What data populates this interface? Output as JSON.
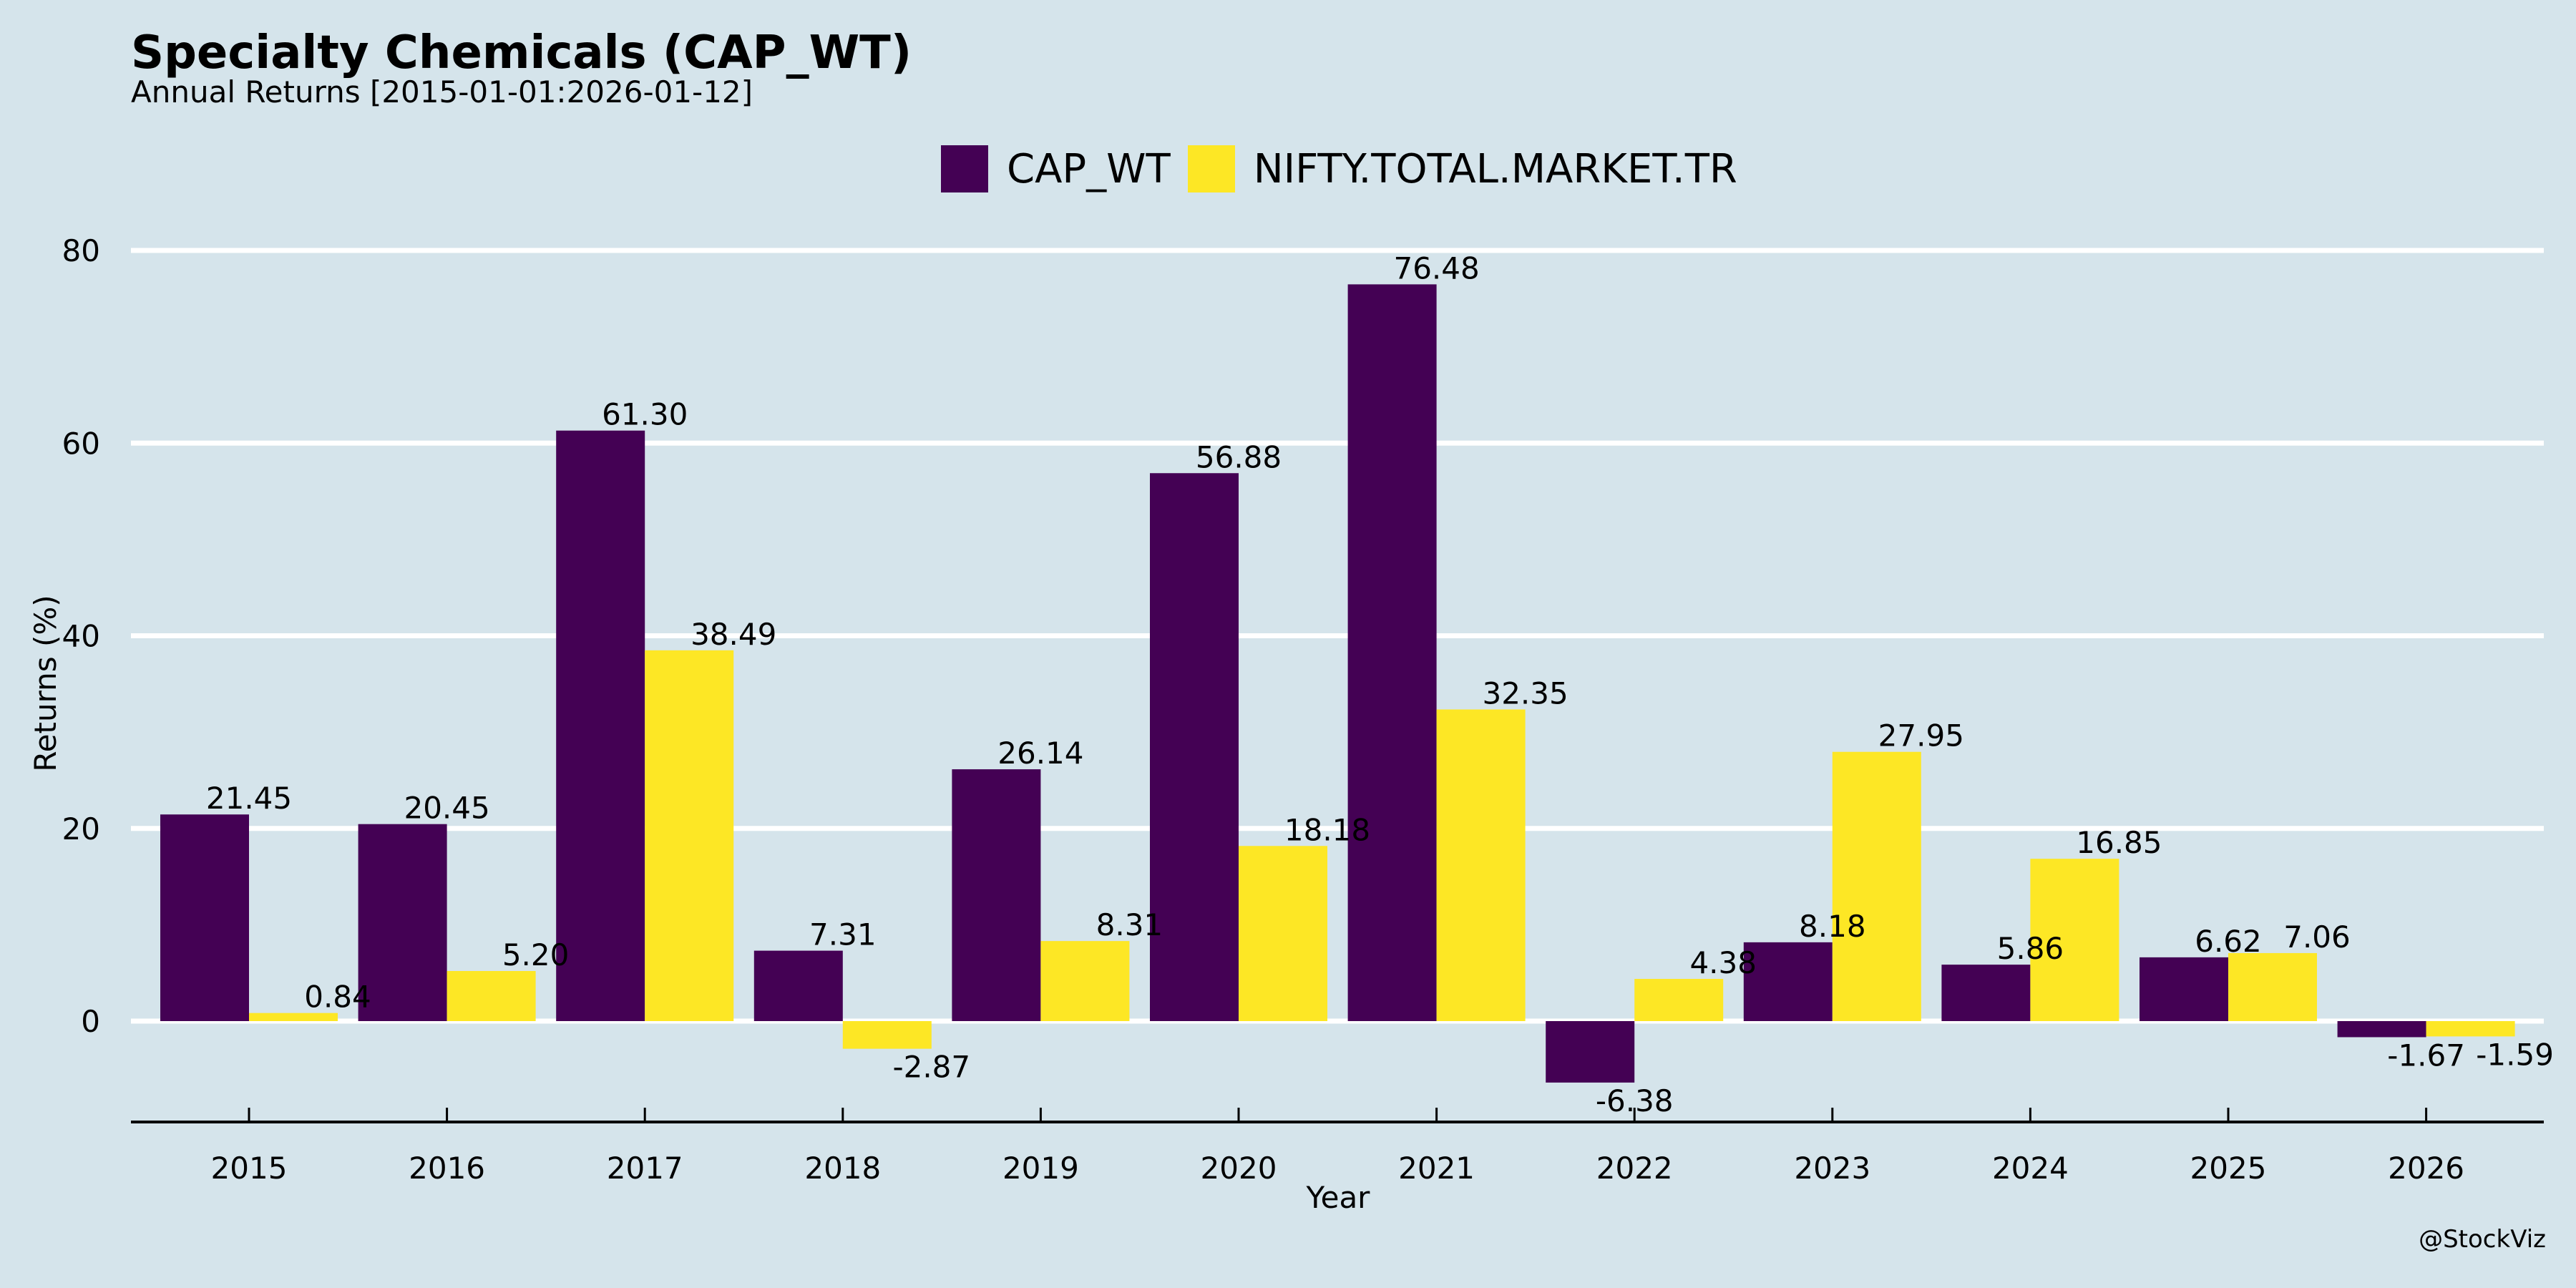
{
  "header": {
    "title": "Specialty Chemicals (CAP_WT)",
    "subtitle": "Annual Returns [2015-01-01:2026-01-12]"
  },
  "watermark": "@StockViz",
  "chart_data": {
    "type": "bar",
    "title": "Specialty Chemicals (CAP_WT)",
    "subtitle": "Annual Returns [2015-01-01:2026-01-12]",
    "xlabel": "Year",
    "ylabel": "Returns (%)",
    "categories": [
      "2015",
      "2016",
      "2017",
      "2018",
      "2019",
      "2020",
      "2021",
      "2022",
      "2023",
      "2024",
      "2025",
      "2026"
    ],
    "series": [
      {
        "name": "CAP_WT",
        "color": "#440154",
        "values": [
          21.45,
          20.45,
          61.3,
          7.31,
          26.14,
          56.88,
          76.48,
          -6.38,
          8.18,
          5.86,
          6.62,
          -1.67
        ],
        "labels": [
          "21.45",
          "20.45",
          "61.30",
          "7.31",
          "26.14",
          "56.88",
          "76.48",
          "-6.38",
          "8.18",
          "5.86",
          "6.62",
          "-1.67"
        ]
      },
      {
        "name": "NIFTY.TOTAL.MARKET.TR",
        "color": "#fde725",
        "values": [
          0.84,
          5.2,
          38.49,
          -2.87,
          8.31,
          18.18,
          32.35,
          4.38,
          27.95,
          16.85,
          7.06,
          -1.59
        ],
        "labels": [
          "0.84",
          "5.20",
          "38.49",
          "-2.87",
          "8.31",
          "18.18",
          "32.35",
          "4.38",
          "27.95",
          "16.85",
          "7.06",
          "-1.59"
        ]
      }
    ],
    "yticks": [
      0,
      20,
      40,
      60,
      80
    ],
    "ytick_labels": [
      "0",
      "20",
      "40",
      "60",
      "80"
    ],
    "ylim": [
      -10.5,
      80
    ],
    "grid": true,
    "legend_position": "top-center",
    "background": "#d5e4eb",
    "gridline_color": "#ffffff"
  }
}
